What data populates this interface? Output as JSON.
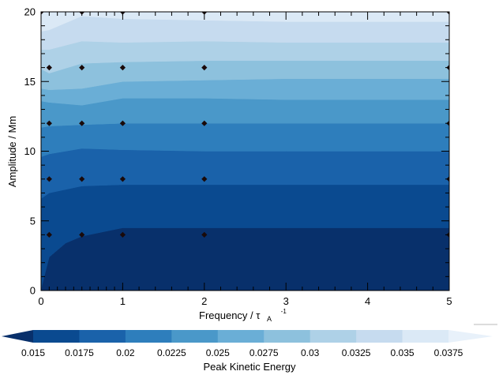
{
  "chart_data": {
    "type": "contour",
    "xlabel": "Frequency / τ",
    "xlabel_sub": "A",
    "xlabel_sup": "-1",
    "ylabel": "Amplitude / Mm",
    "xlim": [
      0,
      5
    ],
    "ylim": [
      0,
      20
    ],
    "x_ticks": [
      0,
      1,
      2,
      3,
      4,
      5
    ],
    "y_ticks": [
      0,
      5,
      10,
      15,
      20
    ],
    "x_tick_labels": [
      "0",
      "1",
      "2",
      "3",
      "4",
      "5"
    ],
    "y_tick_labels": [
      "0",
      "5",
      "10",
      "15",
      "20"
    ],
    "samples": [
      {
        "x": 0.1,
        "y": 4
      },
      {
        "x": 0.1,
        "y": 8
      },
      {
        "x": 0.1,
        "y": 12
      },
      {
        "x": 0.1,
        "y": 16
      },
      {
        "x": 0.5,
        "y": 4
      },
      {
        "x": 0.5,
        "y": 8
      },
      {
        "x": 0.5,
        "y": 12
      },
      {
        "x": 0.5,
        "y": 16
      },
      {
        "x": 1,
        "y": 4
      },
      {
        "x": 1,
        "y": 8
      },
      {
        "x": 1,
        "y": 12
      },
      {
        "x": 1,
        "y": 16
      },
      {
        "x": 2,
        "y": 4
      },
      {
        "x": 2,
        "y": 8
      },
      {
        "x": 2,
        "y": 12
      },
      {
        "x": 2,
        "y": 16
      },
      {
        "x": 5,
        "y": 4
      },
      {
        "x": 5,
        "y": 8
      },
      {
        "x": 5,
        "y": 12
      },
      {
        "x": 5,
        "y": 16
      },
      {
        "x": 0,
        "y": 20
      },
      {
        "x": 0.5,
        "y": 20
      },
      {
        "x": 1,
        "y": 20
      },
      {
        "x": 2,
        "y": 20
      },
      {
        "x": 5,
        "y": 20
      }
    ],
    "levels": [
      0.015,
      0.0175,
      0.02,
      0.0225,
      0.025,
      0.0275,
      0.03,
      0.0325,
      0.035,
      0.0375
    ],
    "level_labels": [
      "0.015",
      "0.0175",
      "0.02",
      "0.0225",
      "0.025",
      "0.0275",
      "0.03",
      "0.0325",
      "0.035",
      "0.0375"
    ],
    "band_colors": [
      "#08306b",
      "#0a4a90",
      "#1a62aa",
      "#2e7ebc",
      "#4a98c9",
      "#6aaed6",
      "#8dc1dd",
      "#aed1e7",
      "#c6dbef",
      "#dbe9f6",
      "#e8f1fa"
    ],
    "contour_boundaries": [
      {
        "level": 0.0175,
        "points": [
          [
            0.0,
            0.1
          ],
          [
            0.1,
            2.4
          ],
          [
            0.3,
            3.4
          ],
          [
            0.5,
            3.9
          ],
          [
            1.0,
            4.5
          ],
          [
            2.0,
            4.5
          ],
          [
            3.0,
            4.5
          ],
          [
            5.0,
            4.5
          ]
        ]
      },
      {
        "level": 0.02,
        "points": [
          [
            0.0,
            6.6
          ],
          [
            0.1,
            7.0
          ],
          [
            0.5,
            7.5
          ],
          [
            1.0,
            7.6
          ],
          [
            2.0,
            7.6
          ],
          [
            3.0,
            7.6
          ],
          [
            5.0,
            7.6
          ]
        ]
      },
      {
        "level": 0.0225,
        "points": [
          [
            0.0,
            9.6
          ],
          [
            0.1,
            9.8
          ],
          [
            0.5,
            10.2
          ],
          [
            1.0,
            10.1
          ],
          [
            2.0,
            10.0
          ],
          [
            3.0,
            10.0
          ],
          [
            5.0,
            10.0
          ]
        ]
      },
      {
        "level": 0.025,
        "points": [
          [
            0.0,
            11.7
          ],
          [
            0.1,
            11.8
          ],
          [
            0.5,
            11.9
          ],
          [
            1.0,
            12.0
          ],
          [
            2.0,
            12.0
          ],
          [
            3.0,
            12.0
          ],
          [
            5.0,
            12.0
          ]
        ]
      },
      {
        "level": 0.0275,
        "points": [
          [
            0.0,
            13.6
          ],
          [
            0.1,
            13.5
          ],
          [
            0.5,
            13.3
          ],
          [
            1.0,
            13.8
          ],
          [
            2.0,
            13.8
          ],
          [
            3.0,
            13.7
          ],
          [
            5.0,
            13.7
          ]
        ]
      },
      {
        "level": 0.03,
        "points": [
          [
            0.0,
            14.5
          ],
          [
            0.1,
            14.4
          ],
          [
            0.5,
            14.5
          ],
          [
            1.0,
            15.0
          ],
          [
            2.0,
            15.1
          ],
          [
            3.0,
            15.2
          ],
          [
            5.0,
            15.2
          ]
        ]
      },
      {
        "level": 0.0325,
        "points": [
          [
            0.0,
            15.9
          ],
          [
            0.1,
            15.6
          ],
          [
            0.5,
            16.3
          ],
          [
            1.0,
            16.4
          ],
          [
            2.0,
            16.5
          ],
          [
            3.0,
            16.5
          ],
          [
            5.0,
            16.5
          ]
        ]
      },
      {
        "level": 0.035,
        "points": [
          [
            0.0,
            17.3
          ],
          [
            0.1,
            17.3
          ],
          [
            0.5,
            17.9
          ],
          [
            1.0,
            17.8
          ],
          [
            2.0,
            17.9
          ],
          [
            3.0,
            17.8
          ],
          [
            5.0,
            17.8
          ]
        ]
      },
      {
        "level": 0.0375,
        "points": [
          [
            0.0,
            18.6
          ],
          [
            0.1,
            18.7
          ],
          [
            0.5,
            19.7
          ],
          [
            1.0,
            19.5
          ],
          [
            2.0,
            19.4
          ],
          [
            3.0,
            19.3
          ],
          [
            5.0,
            19.3
          ]
        ]
      }
    ],
    "colorbar_label": "Peak Kinetic Energy"
  }
}
